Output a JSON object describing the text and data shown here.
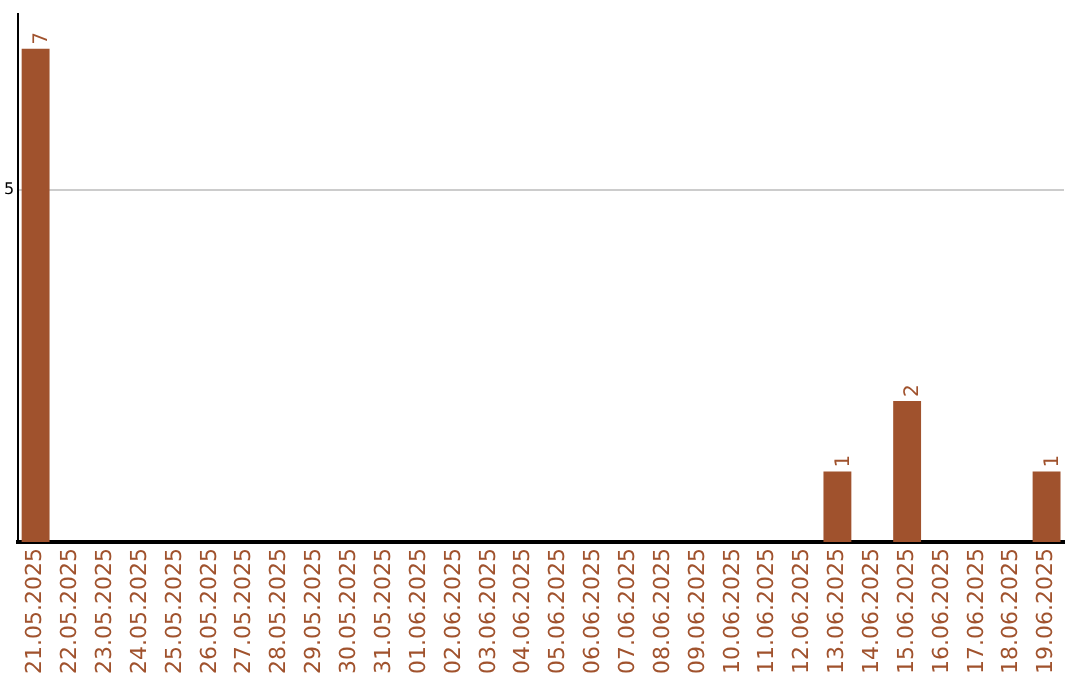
{
  "chart_data": {
    "type": "bar",
    "categories": [
      "21.05.2025",
      "22.05.2025",
      "23.05.2025",
      "24.05.2025",
      "25.05.2025",
      "26.05.2025",
      "27.05.2025",
      "28.05.2025",
      "29.05.2025",
      "30.05.2025",
      "31.05.2025",
      "01.06.2025",
      "02.06.2025",
      "03.06.2025",
      "04.06.2025",
      "05.06.2025",
      "06.06.2025",
      "07.06.2025",
      "08.06.2025",
      "09.06.2025",
      "10.06.2025",
      "11.06.2025",
      "12.06.2025",
      "13.06.2025",
      "14.06.2025",
      "15.06.2025",
      "16.06.2025",
      "17.06.2025",
      "18.06.2025",
      "19.06.2025"
    ],
    "values": [
      7,
      0,
      0,
      0,
      0,
      0,
      0,
      0,
      0,
      0,
      0,
      0,
      0,
      0,
      0,
      0,
      0,
      0,
      0,
      0,
      0,
      0,
      0,
      1,
      0,
      2,
      0,
      0,
      0,
      1
    ],
    "value_labels": [
      "7",
      null,
      null,
      null,
      null,
      null,
      null,
      null,
      null,
      null,
      null,
      null,
      null,
      null,
      null,
      null,
      null,
      null,
      null,
      null,
      null,
      null,
      null,
      "1",
      null,
      "2",
      null,
      null,
      null,
      "1"
    ],
    "color": "#a0522d",
    "ylim": [
      0,
      7.5
    ],
    "yticks": [
      5
    ],
    "grid": "y",
    "legend": false
  }
}
